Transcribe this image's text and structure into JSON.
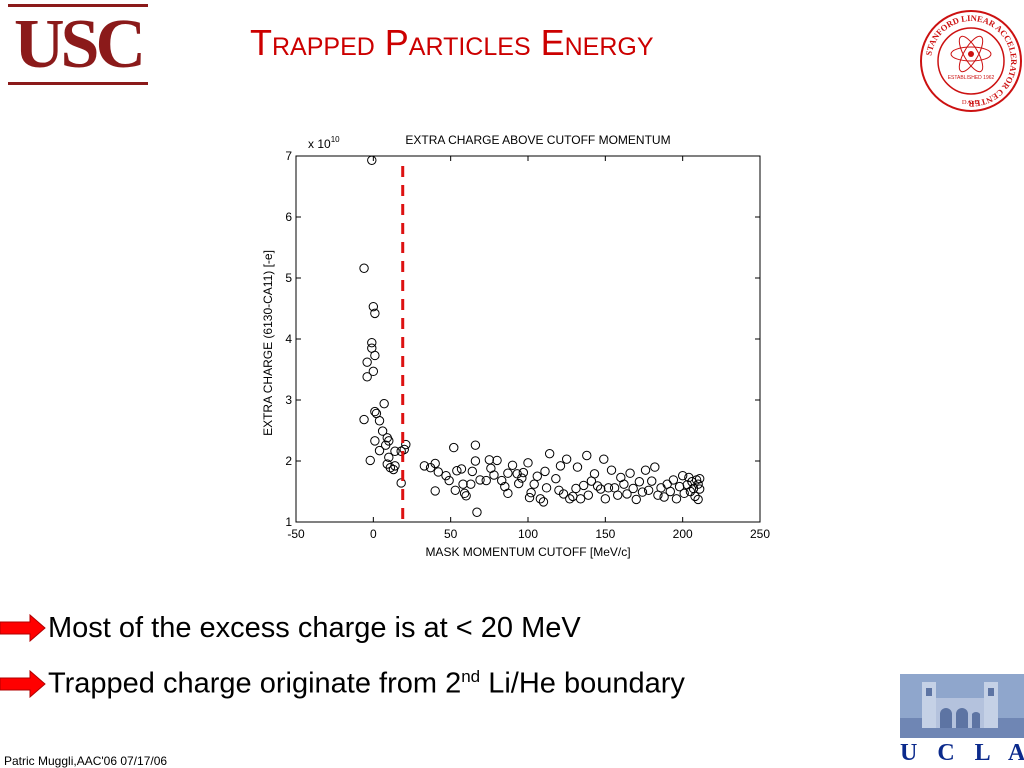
{
  "slide": {
    "title": "Trapped Particles Energy",
    "usc_logo_text": "USC",
    "ucla_logo_text": "U C L A",
    "slac_seal_text": "STANFORD LINEAR ACCELERATOR CENTER",
    "slac_seal_inner": "ESTABLISHED 1962",
    "slac_seal_bottom": "D.O.E.",
    "bullets": [
      {
        "text": "Most of the excess charge is at < 20 MeV",
        "sup": "",
        "after": ""
      },
      {
        "text": "Trapped charge originate from 2",
        "sup": "nd",
        "after": " Li/He boundary"
      }
    ],
    "footer": "Patric Muggli,AAC'06 07/17/06",
    "colors": {
      "title": "#cc0000",
      "arrow": "#ff0000",
      "cutoff_line": "#dd1111",
      "usc": "#8b1a1a",
      "ucla": "#0b2a8c"
    }
  },
  "chart_data": {
    "type": "scatter",
    "title": "EXTRA CHARGE ABOVE CUTOFF MOMENTUM",
    "xlabel": "MASK MOMENTUM CUTOFF [MeV/c]",
    "ylabel": "EXTRA CHARGE (6130-CA11) [-e]",
    "y_multiplier": "x 10",
    "y_multiplier_exp": "10",
    "xlim": [
      -50,
      250
    ],
    "ylim": [
      1,
      7
    ],
    "xticks": [
      -50,
      0,
      50,
      100,
      150,
      200,
      250
    ],
    "yticks": [
      1,
      2,
      3,
      4,
      5,
      6,
      7
    ],
    "marker": "open-circle",
    "grid": false,
    "cutoff_line": {
      "x": 19,
      "style": "dashed",
      "color": "#dd1111"
    },
    "series": [
      {
        "points": [
          [
            -1,
            6.93
          ],
          [
            -6,
            5.16
          ],
          [
            0,
            4.53
          ],
          [
            1,
            4.42
          ],
          [
            -1,
            3.94
          ],
          [
            -1,
            3.85
          ],
          [
            1,
            3.73
          ],
          [
            -4,
            3.62
          ],
          [
            0,
            3.47
          ],
          [
            -4,
            3.38
          ],
          [
            7,
            2.94
          ],
          [
            1,
            2.81
          ],
          [
            2,
            2.78
          ],
          [
            -6,
            2.68
          ],
          [
            4,
            2.66
          ],
          [
            6,
            2.49
          ],
          [
            9,
            2.38
          ],
          [
            1,
            2.33
          ],
          [
            10,
            2.33
          ],
          [
            8,
            2.26
          ],
          [
            4,
            2.17
          ],
          [
            14,
            2.16
          ],
          [
            18,
            2.16
          ],
          [
            21,
            2.27
          ],
          [
            20,
            2.19
          ],
          [
            10,
            2.06
          ],
          [
            -2,
            2.01
          ],
          [
            9,
            1.95
          ],
          [
            14,
            1.92
          ],
          [
            11,
            1.89
          ],
          [
            13,
            1.86
          ],
          [
            18,
            1.64
          ],
          [
            33,
            1.92
          ],
          [
            37,
            1.89
          ],
          [
            40,
            1.96
          ],
          [
            42,
            1.82
          ],
          [
            47,
            1.76
          ],
          [
            40,
            1.51
          ],
          [
            49,
            1.68
          ],
          [
            52,
            2.22
          ],
          [
            54,
            1.84
          ],
          [
            53,
            1.52
          ],
          [
            57,
            1.87
          ],
          [
            58,
            1.62
          ],
          [
            59,
            1.47
          ],
          [
            60,
            1.43
          ],
          [
            63,
            1.62
          ],
          [
            64,
            1.83
          ],
          [
            66,
            2.0
          ],
          [
            66,
            2.26
          ],
          [
            67,
            1.16
          ],
          [
            69,
            1.69
          ],
          [
            73,
            1.68
          ],
          [
            75,
            2.02
          ],
          [
            76,
            1.88
          ],
          [
            78,
            1.77
          ],
          [
            80,
            2.01
          ],
          [
            83,
            1.68
          ],
          [
            85,
            1.58
          ],
          [
            87,
            1.8
          ],
          [
            87,
            1.47
          ],
          [
            90,
            1.93
          ],
          [
            93,
            1.79
          ],
          [
            94,
            1.63
          ],
          [
            96,
            1.72
          ],
          [
            97,
            1.81
          ],
          [
            100,
            1.97
          ],
          [
            101,
            1.4
          ],
          [
            102,
            1.48
          ],
          [
            104,
            1.62
          ],
          [
            106,
            1.75
          ],
          [
            108,
            1.38
          ],
          [
            110,
            1.33
          ],
          [
            111,
            1.83
          ],
          [
            112,
            1.56
          ],
          [
            114,
            2.12
          ],
          [
            118,
            1.71
          ],
          [
            120,
            1.52
          ],
          [
            121,
            1.92
          ],
          [
            123,
            1.46
          ],
          [
            125,
            2.03
          ],
          [
            127,
            1.38
          ],
          [
            129,
            1.42
          ],
          [
            131,
            1.55
          ],
          [
            132,
            1.9
          ],
          [
            134,
            1.38
          ],
          [
            136,
            1.6
          ],
          [
            138,
            2.09
          ],
          [
            139,
            1.44
          ],
          [
            141,
            1.67
          ],
          [
            143,
            1.79
          ],
          [
            145,
            1.59
          ],
          [
            147,
            1.54
          ],
          [
            149,
            2.03
          ],
          [
            150,
            1.38
          ],
          [
            152,
            1.56
          ],
          [
            154,
            1.85
          ],
          [
            156,
            1.56
          ],
          [
            158,
            1.44
          ],
          [
            160,
            1.73
          ],
          [
            162,
            1.62
          ],
          [
            164,
            1.46
          ],
          [
            166,
            1.8
          ],
          [
            168,
            1.55
          ],
          [
            170,
            1.37
          ],
          [
            172,
            1.66
          ],
          [
            174,
            1.49
          ],
          [
            176,
            1.85
          ],
          [
            178,
            1.52
          ],
          [
            180,
            1.67
          ],
          [
            182,
            1.9
          ],
          [
            184,
            1.44
          ],
          [
            186,
            1.56
          ],
          [
            188,
            1.41
          ],
          [
            190,
            1.62
          ],
          [
            192,
            1.5
          ],
          [
            194,
            1.69
          ],
          [
            196,
            1.38
          ],
          [
            198,
            1.58
          ],
          [
            200,
            1.76
          ],
          [
            201,
            1.47
          ],
          [
            203,
            1.61
          ],
          [
            204,
            1.73
          ],
          [
            205,
            1.5
          ],
          [
            206,
            1.66
          ],
          [
            207,
            1.55
          ],
          [
            208,
            1.42
          ],
          [
            209,
            1.69
          ],
          [
            210,
            1.62
          ],
          [
            210,
            1.37
          ],
          [
            211,
            1.71
          ],
          [
            211,
            1.54
          ]
        ]
      }
    ]
  }
}
